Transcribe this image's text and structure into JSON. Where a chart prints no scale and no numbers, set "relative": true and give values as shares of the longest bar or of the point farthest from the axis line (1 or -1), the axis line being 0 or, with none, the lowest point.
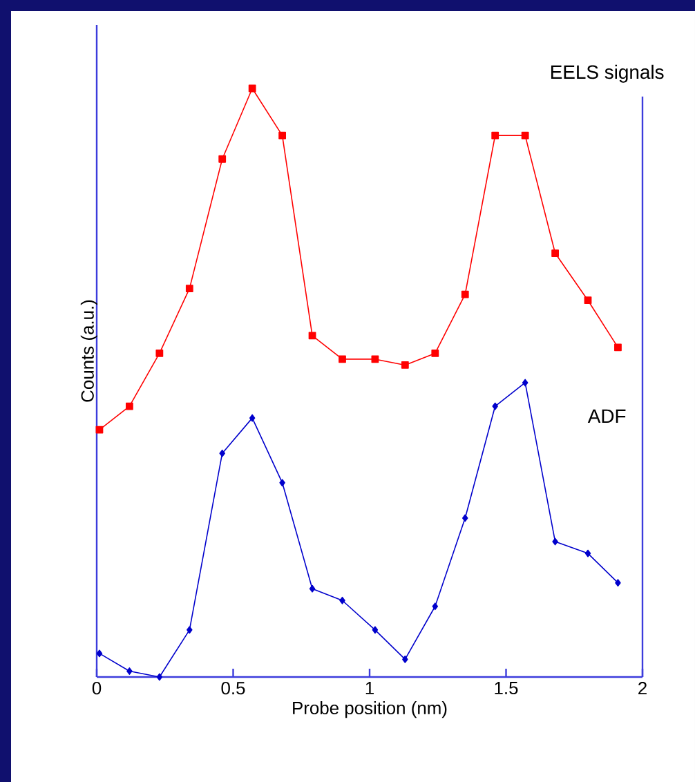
{
  "chart_data": {
    "type": "line",
    "relative": true,
    "xlabel": "Probe position (nm)",
    "ylabel": "Counts (a.u.)",
    "xlim": [
      0,
      2
    ],
    "xticks": [
      0,
      0.5,
      1,
      1.5,
      2
    ],
    "grid": false,
    "line_style": "solid",
    "series": [
      {
        "name": "EELS signals",
        "color": "#ff0000",
        "marker": "square",
        "x": [
          0.01,
          0.12,
          0.23,
          0.34,
          0.46,
          0.57,
          0.68,
          0.79,
          0.9,
          1.02,
          1.13,
          1.24,
          1.35,
          1.46,
          1.57,
          1.68,
          1.8,
          1.91
        ],
        "values": [
          0.42,
          0.46,
          0.55,
          0.66,
          0.88,
          1,
          0.92,
          0.58,
          0.54,
          0.54,
          0.53,
          0.55,
          0.65,
          0.92,
          0.92,
          0.72,
          0.64,
          0.56
        ]
      },
      {
        "name": "ADF",
        "color": "#0000cc",
        "marker": "diamond",
        "x": [
          0.01,
          0.12,
          0.23,
          0.34,
          0.46,
          0.57,
          0.68,
          0.79,
          0.9,
          1.02,
          1.13,
          1.24,
          1.35,
          1.46,
          1.57,
          1.68,
          1.8,
          1.91
        ],
        "values": [
          0.04,
          0.01,
          0,
          0.08,
          0.38,
          0.44,
          0.33,
          0.15,
          0.13,
          0.08,
          0.03,
          0.12,
          0.27,
          0.46,
          0.5,
          0.23,
          0.21,
          0.16
        ]
      }
    ]
  }
}
